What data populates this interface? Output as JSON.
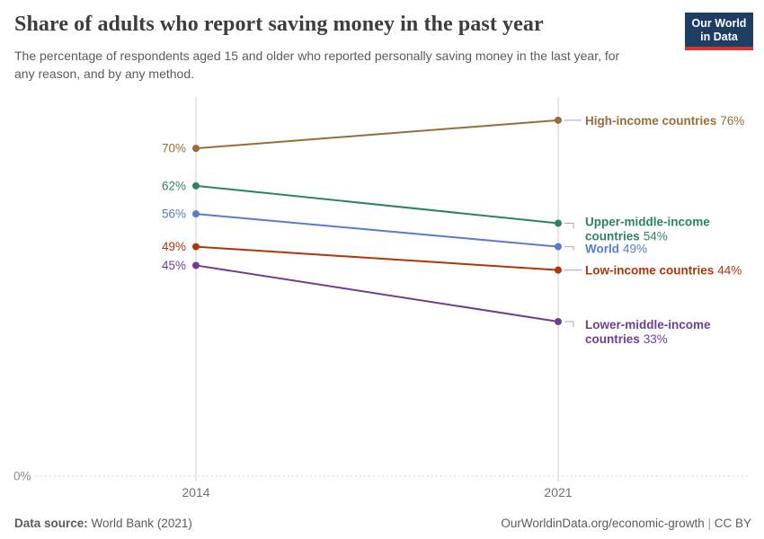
{
  "header": {
    "title": "Share of adults who report saving money in the past year",
    "subtitle_lines": [
      "The percentage of respondents aged 15 and older who reported personally saving money in the last year, for",
      "any reason, and by any method."
    ],
    "logo": {
      "line1": "Our World",
      "line2": "in Data",
      "bg_color": "#1d3d63",
      "accent_color": "#d8352f"
    }
  },
  "chart_data": {
    "type": "line",
    "title": "Share of adults who report saving money in the past year",
    "x": [
      "2014",
      "2021"
    ],
    "xlabel": "",
    "ylabel": "",
    "ylim": [
      0,
      80
    ],
    "grid": false,
    "legend_position": "right-inline-labels",
    "zero_label": "0%",
    "series": [
      {
        "name": "High-income countries",
        "label_lines": [
          "High-income countries"
        ],
        "values": [
          70,
          76
        ],
        "start_label": "70%",
        "end_label": "76%",
        "color": "#996D39"
      },
      {
        "name": "Upper-middle-income countries",
        "label_lines": [
          "Upper-middle-income",
          "countries"
        ],
        "values": [
          62,
          54
        ],
        "start_label": "62%",
        "end_label": "54%",
        "color": "#2C8465"
      },
      {
        "name": "World",
        "label_lines": [
          "World"
        ],
        "values": [
          56,
          49
        ],
        "start_label": "56%",
        "end_label": "49%",
        "color": "#577CCB"
      },
      {
        "name": "Low-income countries",
        "label_lines": [
          "Low-income countries"
        ],
        "values": [
          49,
          44
        ],
        "start_label": "49%",
        "end_label": "44%",
        "color": "#B13507"
      },
      {
        "name": "Lower-middle-income countries",
        "label_lines": [
          "Lower-middle-income",
          "countries"
        ],
        "values": [
          45,
          33
        ],
        "start_label": "45%",
        "end_label": "33%",
        "color": "#6D3E91"
      }
    ],
    "axis_color": "#cfcfcf",
    "tick_label_color": "#6e6e6e",
    "connector_color": "#a8a8a8"
  },
  "footer": {
    "data_source_label": "Data source:",
    "data_source_value": " World Bank (2021)",
    "url": "OurWorldinData.org/economic-growth",
    "separator": " | ",
    "license": "CC BY"
  }
}
